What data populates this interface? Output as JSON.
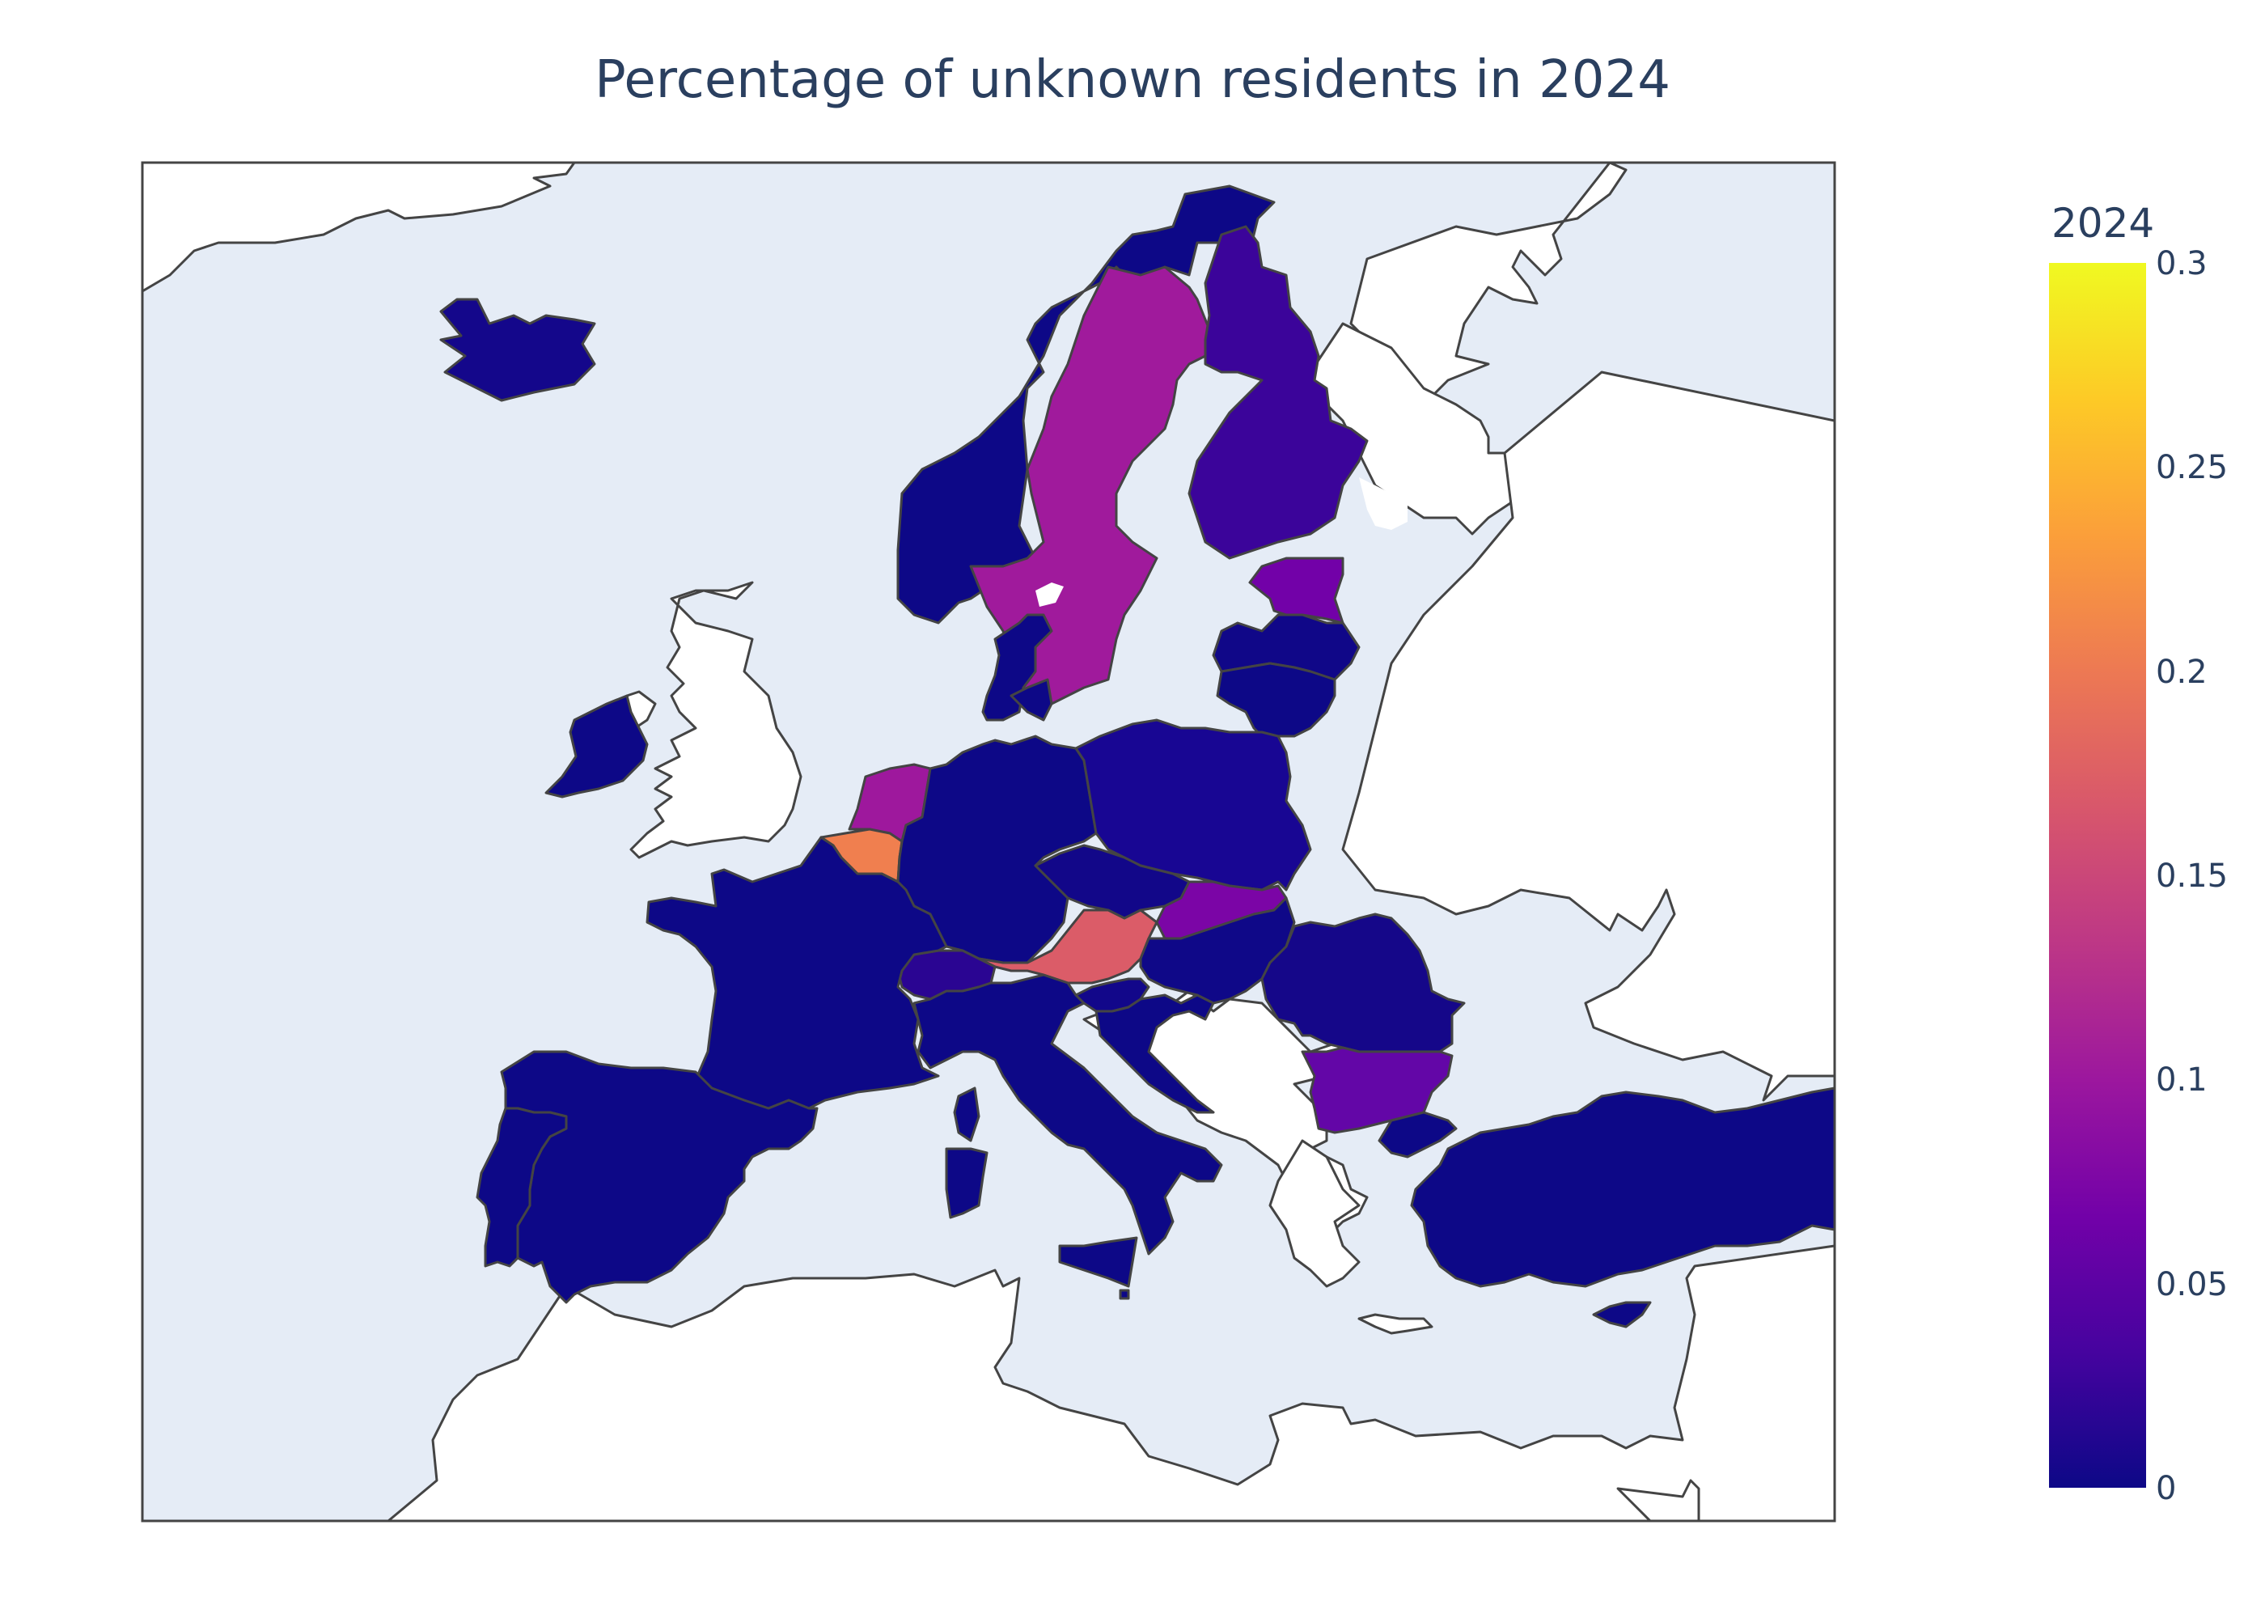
{
  "title": "Percentage of unknown residents in 2024",
  "colorbar": {
    "title": "2024",
    "ticks": [
      "0",
      "0.05",
      "0.1",
      "0.15",
      "0.2",
      "0.25",
      "0.3"
    ],
    "range": [
      0,
      0.3
    ],
    "colors": [
      "#0d0887",
      "#46039f",
      "#7201a8",
      "#9c179e",
      "#bd3786",
      "#d8576b",
      "#ed7953",
      "#fb9f3a",
      "#fdca26",
      "#f0f921"
    ]
  },
  "chart_data": {
    "type": "choropleth",
    "title": "Percentage of unknown residents in 2024",
    "colorbar_title": "2024",
    "zrange": [
      0,
      0.3
    ],
    "regions": [
      {
        "name": "Iceland",
        "value": 0.01
      },
      {
        "name": "Norway",
        "value": 0.0
      },
      {
        "name": "Sweden",
        "value": 0.1
      },
      {
        "name": "Finland",
        "value": 0.03
      },
      {
        "name": "Estonia",
        "value": 0.06
      },
      {
        "name": "Latvia",
        "value": 0.01
      },
      {
        "name": "Lithuania",
        "value": 0.0
      },
      {
        "name": "Denmark",
        "value": 0.0
      },
      {
        "name": "Ireland",
        "value": 0.0
      },
      {
        "name": "Netherlands",
        "value": 0.11
      },
      {
        "name": "Belgium",
        "value": 0.22
      },
      {
        "name": "Germany",
        "value": 0.0
      },
      {
        "name": "Poland",
        "value": 0.01
      },
      {
        "name": "Czechia",
        "value": 0.01
      },
      {
        "name": "Slovakia",
        "value": 0.07
      },
      {
        "name": "Austria",
        "value": 0.19
      },
      {
        "name": "Switzerland",
        "value": 0.02
      },
      {
        "name": "Hungary",
        "value": 0.01
      },
      {
        "name": "Romania",
        "value": 0.01
      },
      {
        "name": "Bulgaria",
        "value": 0.06
      },
      {
        "name": "France",
        "value": 0.0
      },
      {
        "name": "Spain",
        "value": 0.0
      },
      {
        "name": "Portugal",
        "value": 0.0
      },
      {
        "name": "Italy",
        "value": 0.0
      },
      {
        "name": "Slovenia",
        "value": 0.01
      },
      {
        "name": "Croatia",
        "value": 0.0
      },
      {
        "name": "Greece",
        "value": 0.0
      },
      {
        "name": "Turkey",
        "value": 0.0
      },
      {
        "name": "Cyprus",
        "value": 0.0
      },
      {
        "name": "Malta",
        "value": 0.0
      }
    ]
  }
}
